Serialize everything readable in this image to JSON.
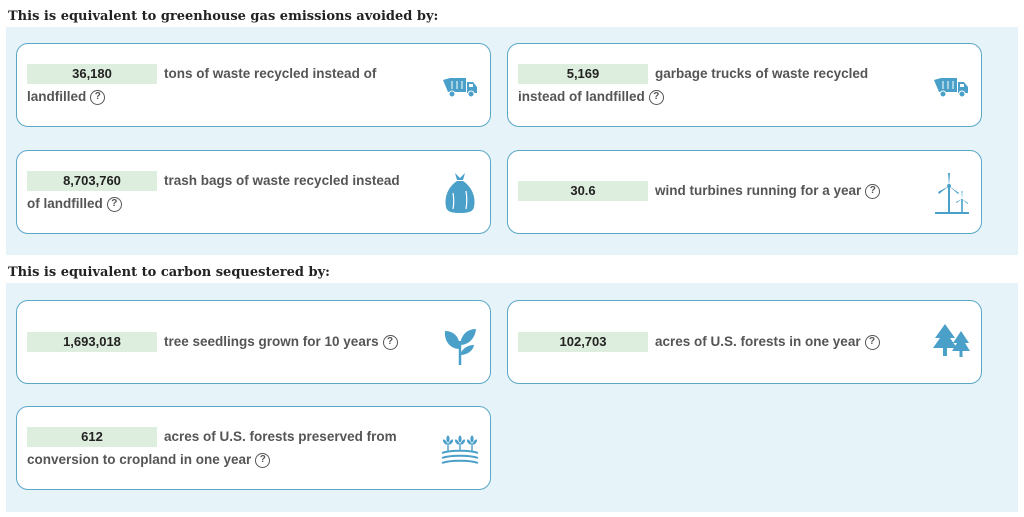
{
  "sections": [
    {
      "title": "This is equivalent to greenhouse gas emissions avoided by:",
      "cards": [
        {
          "value": "36,180",
          "text": "tons of waste recycled instead of landfilled",
          "icon": "garbage-truck-icon"
        },
        {
          "value": "5,169",
          "text": "garbage trucks of waste recycled instead of landfilled",
          "icon": "garbage-truck-icon"
        },
        {
          "value": "8,703,760",
          "text": "trash bags of waste recycled instead of landfilled",
          "icon": "trash-bag-icon"
        },
        {
          "value": "30.6",
          "text": "wind turbines running for a year",
          "icon": "wind-turbine-icon"
        }
      ]
    },
    {
      "title": "This is equivalent to carbon sequestered by:",
      "cards": [
        {
          "value": "1,693,018",
          "text": "tree seedlings grown for 10 years",
          "icon": "seedling-icon"
        },
        {
          "value": "102,703",
          "text": "acres of U.S. forests in one year",
          "icon": "forest-icon"
        },
        {
          "value": "612",
          "text": "acres of U.S. forests preserved from conversion to cropland in one year",
          "icon": "crop-field-icon"
        }
      ]
    }
  ],
  "help_glyph": "?",
  "colors": {
    "panel_bg": "#e6f4f9",
    "card_border": "#5aa7c6",
    "value_bg": "#deeede",
    "icon": "#4aa0c8"
  }
}
